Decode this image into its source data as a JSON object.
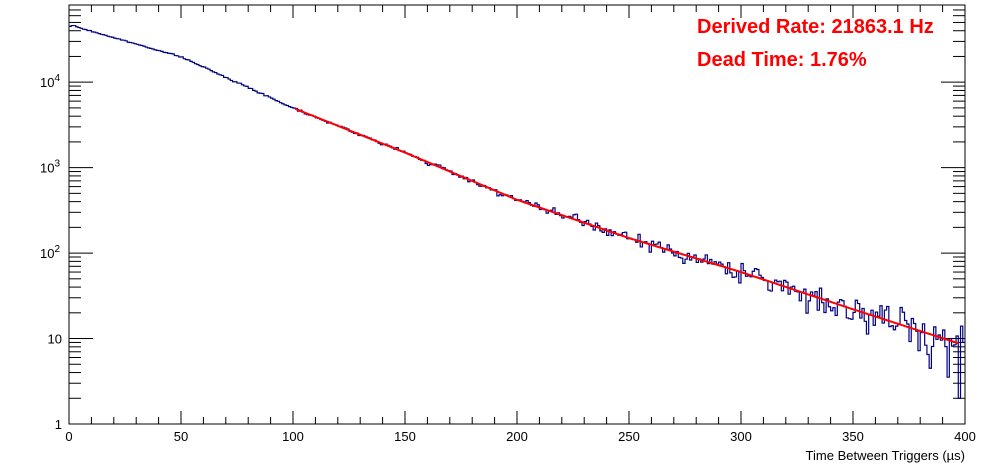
{
  "chart_data": {
    "type": "histogram",
    "xlabel": "Time Between Triggers (µs)",
    "ylabel": "",
    "xlim": [
      0,
      400
    ],
    "ylim": [
      1,
      80000
    ],
    "y_scale": "log",
    "grid": false,
    "x_tick_labels": [
      "0",
      "50",
      "100",
      "150",
      "200",
      "250",
      "300",
      "350",
      "400"
    ],
    "y_tick_labels": [
      {
        "value": 1,
        "base": "1",
        "exp": ""
      },
      {
        "value": 10,
        "base": "10",
        "exp": ""
      },
      {
        "value": 100,
        "base": "10",
        "exp": "2"
      },
      {
        "value": 1000,
        "base": "10",
        "exp": "3"
      },
      {
        "value": 10000,
        "base": "10",
        "exp": "4"
      }
    ],
    "histogram": {
      "bin_width": 1,
      "color": "#000080",
      "initial_plateau": [
        [
          0,
          45000
        ],
        [
          1,
          46000
        ],
        [
          2,
          46000
        ],
        [
          3,
          44500
        ]
      ],
      "knots": [
        [
          3,
          44500
        ],
        [
          50,
          19800
        ],
        [
          100,
          5000
        ],
        [
          150,
          1500
        ],
        [
          200,
          420
        ],
        [
          250,
          150
        ],
        [
          300,
          60
        ],
        [
          350,
          22
        ],
        [
          397,
          8.8
        ]
      ],
      "tail_bins": [
        [
          397,
          2
        ],
        [
          398,
          14
        ],
        [
          399,
          9
        ]
      ],
      "noise_seed": 7
    },
    "fit": {
      "color": "#ff0000",
      "x_range": [
        101,
        397
      ],
      "knots": [
        [
          100,
          5000
        ],
        [
          150,
          1500
        ],
        [
          200,
          420
        ],
        [
          250,
          150
        ],
        [
          300,
          60
        ],
        [
          350,
          22
        ],
        [
          397,
          8.8
        ]
      ]
    },
    "annotations": [
      {
        "text": "Derived Rate: 21863.1 Hz",
        "color": "#ff0000"
      },
      {
        "text": "Dead Time: 1.76%",
        "color": "#ff0000"
      }
    ]
  }
}
